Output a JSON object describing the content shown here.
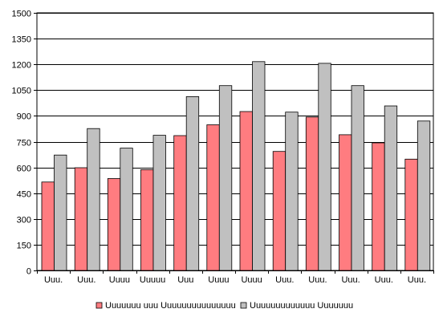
{
  "chart_data": {
    "type": "bar",
    "title": "",
    "xlabel": "",
    "ylabel": "",
    "ylim": [
      0,
      1500
    ],
    "yticks": [
      0,
      150,
      300,
      450,
      600,
      750,
      900,
      1050,
      1200,
      1350,
      1500
    ],
    "grid": true,
    "legend_position": "bottom",
    "categories": [
      "Uuu.",
      "Uuu.",
      "Uuuu",
      "Uuuuu",
      "Uuu",
      "Uuuu",
      "Uuuu",
      "Uuu.",
      "Uuu.",
      "Uuu.",
      "Uuu.",
      "Uuu."
    ],
    "series": [
      {
        "name": "Uuuuuuu uuu Uuuuuuuuuuuuuuu",
        "color": "#ff7c80",
        "values": [
          515,
          598,
          535,
          587,
          785,
          848,
          925,
          693,
          893,
          790,
          743,
          648
        ]
      },
      {
        "name": "Uuuuuuuuuuuuu Uuuuuuu",
        "color": "#c0c0c0",
        "values": [
          672,
          826,
          712,
          787,
          1012,
          1076,
          1216,
          922,
          1206,
          1076,
          958,
          870
        ]
      }
    ]
  }
}
